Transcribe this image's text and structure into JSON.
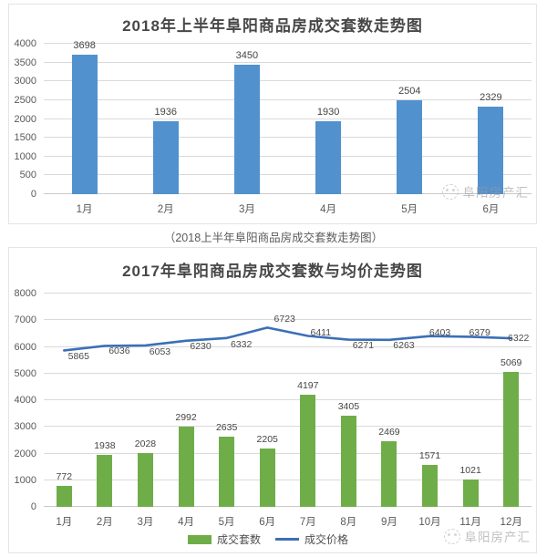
{
  "page": {
    "caption": "（2018上半年阜阳商品房成交套数走势图）",
    "watermark_text": "阜阳房产汇"
  },
  "chart_data": [
    {
      "type": "bar",
      "title": "2018年上半年阜阳商品房成交套数走势图",
      "categories": [
        "1月",
        "2月",
        "3月",
        "4月",
        "5月",
        "6月"
      ],
      "values": [
        3698,
        1936,
        3450,
        1930,
        2504,
        2329
      ],
      "bar_color": "#5191ce",
      "ylim": [
        0,
        4000
      ],
      "yticks": [
        0,
        500,
        1000,
        1500,
        2000,
        2500,
        3000,
        3500,
        4000
      ],
      "grid": true,
      "legend": null
    },
    {
      "type": "bar+line",
      "title": "2017年阜阳商品房成交套数与均价走势图",
      "categories": [
        "1月",
        "2月",
        "3月",
        "4月",
        "5月",
        "6月",
        "7月",
        "8月",
        "9月",
        "10月",
        "11月",
        "12月"
      ],
      "series": [
        {
          "name": "成交套数",
          "type": "bar",
          "color": "#6fad49",
          "values": [
            772,
            1938,
            2028,
            2992,
            2635,
            2205,
            4197,
            3405,
            2469,
            1571,
            1021,
            5069
          ]
        },
        {
          "name": "成交价格",
          "type": "line",
          "color": "#3b6fb7",
          "values": [
            5865,
            6036,
            6053,
            6230,
            6332,
            6723,
            6411,
            6271,
            6263,
            6403,
            6379,
            6322
          ]
        }
      ],
      "ylim": [
        0,
        8000
      ],
      "yticks": [
        0,
        1000,
        2000,
        3000,
        4000,
        5000,
        6000,
        7000,
        8000
      ],
      "grid": true,
      "legend_position": "bottom"
    }
  ]
}
